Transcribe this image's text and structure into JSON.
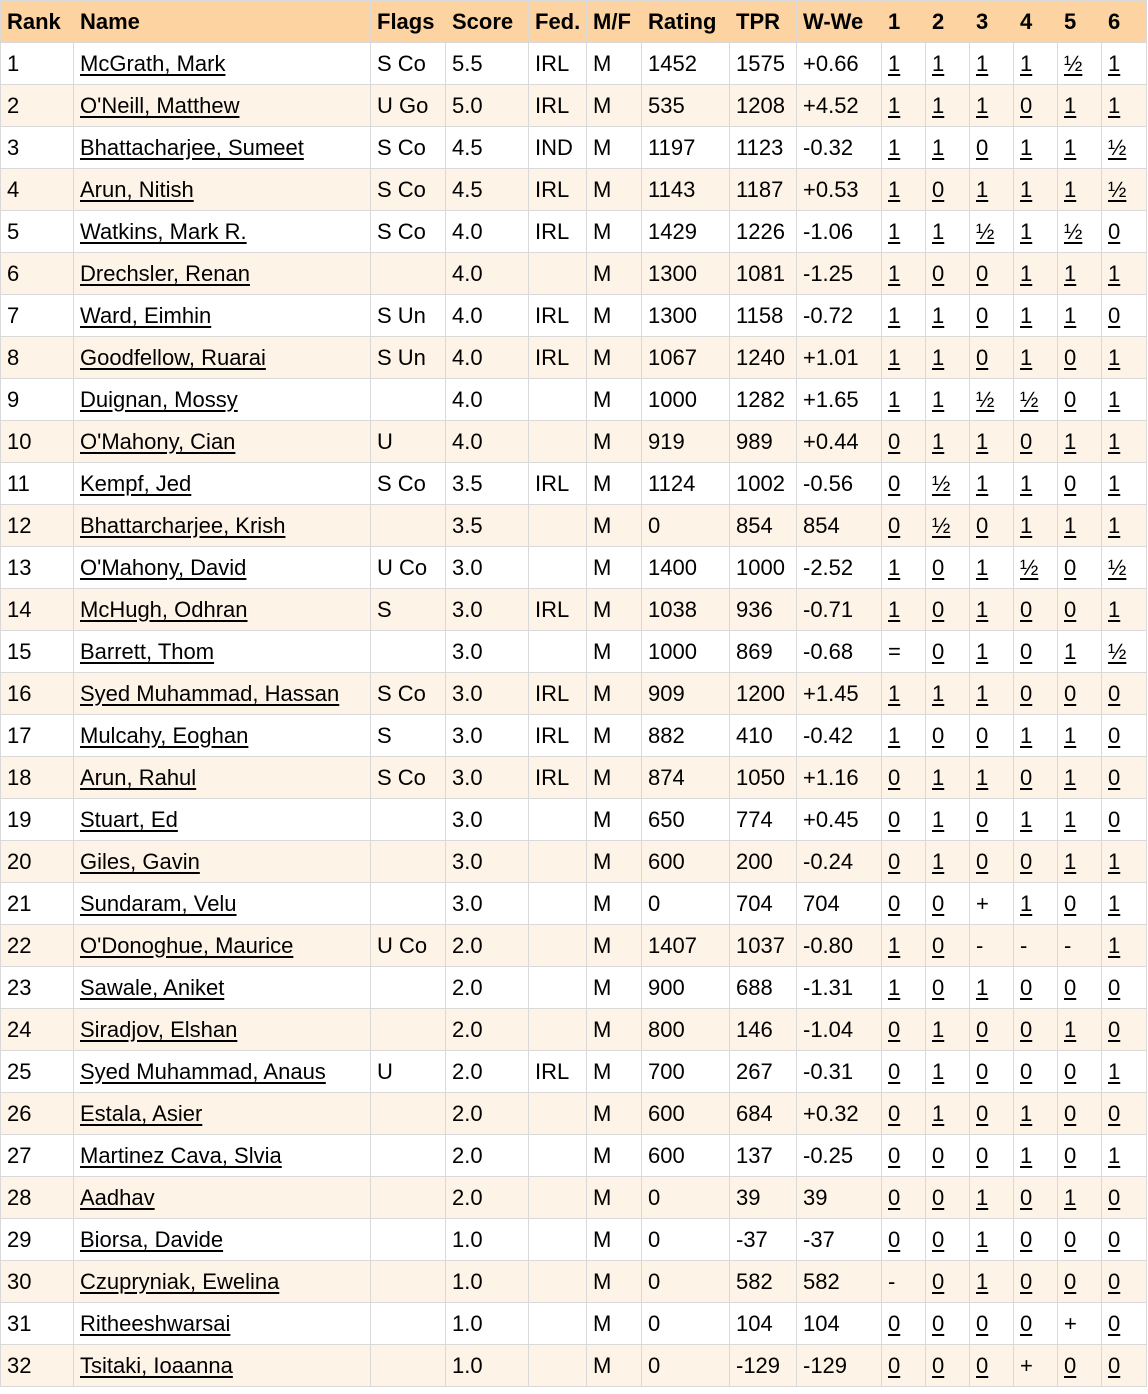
{
  "columns": [
    "Rank",
    "Name",
    "Flags",
    "Score",
    "Fed.",
    "M/F",
    "Rating",
    "TPR",
    "W-We",
    "1",
    "2",
    "3",
    "4",
    "5",
    "6"
  ],
  "rows": [
    {
      "rank": "1",
      "name": "McGrath, Mark",
      "flags": "S Co",
      "score": "5.5",
      "fed": "IRL",
      "mf": "M",
      "rating": "1452",
      "tpr": "1575",
      "wwe": "+0.66",
      "rounds": [
        "1",
        "1",
        "1",
        "1",
        "½",
        "1"
      ]
    },
    {
      "rank": "2",
      "name": "O'Neill, Matthew",
      "flags": "U Go",
      "score": "5.0",
      "fed": "IRL",
      "mf": "M",
      "rating": "535",
      "tpr": "1208",
      "wwe": "+4.52",
      "rounds": [
        "1",
        "1",
        "1",
        "0",
        "1",
        "1"
      ]
    },
    {
      "rank": "3",
      "name": "Bhattacharjee, Sumeet",
      "flags": "S Co",
      "score": "4.5",
      "fed": "IND",
      "mf": "M",
      "rating": "1197",
      "tpr": "1123",
      "wwe": "-0.32",
      "rounds": [
        "1",
        "1",
        "0",
        "1",
        "1",
        "½"
      ]
    },
    {
      "rank": "4",
      "name": "Arun, Nitish",
      "flags": "S Co",
      "score": "4.5",
      "fed": "IRL",
      "mf": "M",
      "rating": "1143",
      "tpr": "1187",
      "wwe": "+0.53",
      "rounds": [
        "1",
        "0",
        "1",
        "1",
        "1",
        "½"
      ]
    },
    {
      "rank": "5",
      "name": "Watkins, Mark R.",
      "flags": "S Co",
      "score": "4.0",
      "fed": "IRL",
      "mf": "M",
      "rating": "1429",
      "tpr": "1226",
      "wwe": "-1.06",
      "rounds": [
        "1",
        "1",
        "½",
        "1",
        "½",
        "0"
      ]
    },
    {
      "rank": "6",
      "name": "Drechsler, Renan",
      "flags": "",
      "score": "4.0",
      "fed": "",
      "mf": "M",
      "rating": "1300",
      "tpr": "1081",
      "wwe": "-1.25",
      "rounds": [
        "1",
        "0",
        "0",
        "1",
        "1",
        "1"
      ]
    },
    {
      "rank": "7",
      "name": "Ward, Eimhin",
      "flags": "S Un",
      "score": "4.0",
      "fed": "IRL",
      "mf": "M",
      "rating": "1300",
      "tpr": "1158",
      "wwe": "-0.72",
      "rounds": [
        "1",
        "1",
        "0",
        "1",
        "1",
        "0"
      ]
    },
    {
      "rank": "8",
      "name": "Goodfellow, Ruarai",
      "flags": "S Un",
      "score": "4.0",
      "fed": "IRL",
      "mf": "M",
      "rating": "1067",
      "tpr": "1240",
      "wwe": "+1.01",
      "rounds": [
        "1",
        "1",
        "0",
        "1",
        "0",
        "1"
      ]
    },
    {
      "rank": "9",
      "name": "Duignan, Mossy",
      "flags": "",
      "score": "4.0",
      "fed": "",
      "mf": "M",
      "rating": "1000",
      "tpr": "1282",
      "wwe": "+1.65",
      "rounds": [
        "1",
        "1",
        "½",
        "½",
        "0",
        "1"
      ]
    },
    {
      "rank": "10",
      "name": "O'Mahony, Cian",
      "flags": "U",
      "score": "4.0",
      "fed": "",
      "mf": "M",
      "rating": "919",
      "tpr": "989",
      "wwe": "+0.44",
      "rounds": [
        "0",
        "1",
        "1",
        "0",
        "1",
        "1"
      ]
    },
    {
      "rank": "11",
      "name": "Kempf, Jed",
      "flags": "S Co",
      "score": "3.5",
      "fed": "IRL",
      "mf": "M",
      "rating": "1124",
      "tpr": "1002",
      "wwe": "-0.56",
      "rounds": [
        "0",
        "½",
        "1",
        "1",
        "0",
        "1"
      ]
    },
    {
      "rank": "12",
      "name": "Bhattarcharjee, Krish",
      "flags": "",
      "score": "3.5",
      "fed": "",
      "mf": "M",
      "rating": "0",
      "tpr": "854",
      "wwe": "854",
      "rounds": [
        "0",
        "½",
        "0",
        "1",
        "1",
        "1"
      ]
    },
    {
      "rank": "13",
      "name": "O'Mahony, David",
      "flags": "U Co",
      "score": "3.0",
      "fed": "",
      "mf": "M",
      "rating": "1400",
      "tpr": "1000",
      "wwe": "-2.52",
      "rounds": [
        "1",
        "0",
        "1",
        "½",
        "0",
        "½"
      ]
    },
    {
      "rank": "14",
      "name": "McHugh, Odhran",
      "flags": "S",
      "score": "3.0",
      "fed": "IRL",
      "mf": "M",
      "rating": "1038",
      "tpr": "936",
      "wwe": "-0.71",
      "rounds": [
        "1",
        "0",
        "1",
        "0",
        "0",
        "1"
      ]
    },
    {
      "rank": "15",
      "name": "Barrett, Thom",
      "flags": "",
      "score": "3.0",
      "fed": "",
      "mf": "M",
      "rating": "1000",
      "tpr": "869",
      "wwe": "-0.68",
      "rounds": [
        "=",
        "0",
        "1",
        "0",
        "1",
        "½"
      ]
    },
    {
      "rank": "16",
      "name": "Syed Muhammad, Hassan",
      "flags": "S Co",
      "score": "3.0",
      "fed": "IRL",
      "mf": "M",
      "rating": "909",
      "tpr": "1200",
      "wwe": "+1.45",
      "rounds": [
        "1",
        "1",
        "1",
        "0",
        "0",
        "0"
      ]
    },
    {
      "rank": "17",
      "name": "Mulcahy, Eoghan",
      "flags": "S",
      "score": "3.0",
      "fed": "IRL",
      "mf": "M",
      "rating": "882",
      "tpr": "410",
      "wwe": "-0.42",
      "rounds": [
        "1",
        "0",
        "0",
        "1",
        "1",
        "0"
      ]
    },
    {
      "rank": "18",
      "name": "Arun, Rahul",
      "flags": "S Co",
      "score": "3.0",
      "fed": "IRL",
      "mf": "M",
      "rating": "874",
      "tpr": "1050",
      "wwe": "+1.16",
      "rounds": [
        "0",
        "1",
        "1",
        "0",
        "1",
        "0"
      ]
    },
    {
      "rank": "19",
      "name": "Stuart, Ed",
      "flags": "",
      "score": "3.0",
      "fed": "",
      "mf": "M",
      "rating": "650",
      "tpr": "774",
      "wwe": "+0.45",
      "rounds": [
        "0",
        "1",
        "0",
        "1",
        "1",
        "0"
      ]
    },
    {
      "rank": "20",
      "name": "Giles, Gavin",
      "flags": "",
      "score": "3.0",
      "fed": "",
      "mf": "M",
      "rating": "600",
      "tpr": "200",
      "wwe": "-0.24",
      "rounds": [
        "0",
        "1",
        "0",
        "0",
        "1",
        "1"
      ]
    },
    {
      "rank": "21",
      "name": "Sundaram, Velu",
      "flags": "",
      "score": "3.0",
      "fed": "",
      "mf": "M",
      "rating": "0",
      "tpr": "704",
      "wwe": "704",
      "rounds": [
        "0",
        "0",
        "+",
        "1",
        "0",
        "1"
      ]
    },
    {
      "rank": "22",
      "name": "O'Donoghue, Maurice",
      "flags": "U Co",
      "score": "2.0",
      "fed": "",
      "mf": "M",
      "rating": "1407",
      "tpr": "1037",
      "wwe": "-0.80",
      "rounds": [
        "1",
        "0",
        "-",
        "-",
        "-",
        "1"
      ]
    },
    {
      "rank": "23",
      "name": "Sawale, Aniket",
      "flags": "",
      "score": "2.0",
      "fed": "",
      "mf": "M",
      "rating": "900",
      "tpr": "688",
      "wwe": "-1.31",
      "rounds": [
        "1",
        "0",
        "1",
        "0",
        "0",
        "0"
      ]
    },
    {
      "rank": "24",
      "name": "Siradjov, Elshan",
      "flags": "",
      "score": "2.0",
      "fed": "",
      "mf": "M",
      "rating": "800",
      "tpr": "146",
      "wwe": "-1.04",
      "rounds": [
        "0",
        "1",
        "0",
        "0",
        "1",
        "0"
      ]
    },
    {
      "rank": "25",
      "name": "Syed Muhammad, Anaus",
      "flags": "U",
      "score": "2.0",
      "fed": "IRL",
      "mf": "M",
      "rating": "700",
      "tpr": "267",
      "wwe": "-0.31",
      "rounds": [
        "0",
        "1",
        "0",
        "0",
        "0",
        "1"
      ]
    },
    {
      "rank": "26",
      "name": "Estala, Asier",
      "flags": "",
      "score": "2.0",
      "fed": "",
      "mf": "M",
      "rating": "600",
      "tpr": "684",
      "wwe": "+0.32",
      "rounds": [
        "0",
        "1",
        "0",
        "1",
        "0",
        "0"
      ]
    },
    {
      "rank": "27",
      "name": "Martinez Cava, Slvia",
      "flags": "",
      "score": "2.0",
      "fed": "",
      "mf": "M",
      "rating": "600",
      "tpr": "137",
      "wwe": "-0.25",
      "rounds": [
        "0",
        "0",
        "0",
        "1",
        "0",
        "1"
      ]
    },
    {
      "rank": "28",
      "name": "Aadhav",
      "flags": "",
      "score": "2.0",
      "fed": "",
      "mf": "M",
      "rating": "0",
      "tpr": "39",
      "wwe": "39",
      "rounds": [
        "0",
        "0",
        "1",
        "0",
        "1",
        "0"
      ]
    },
    {
      "rank": "29",
      "name": "Biorsa, Davide",
      "flags": "",
      "score": "1.0",
      "fed": "",
      "mf": "M",
      "rating": "0",
      "tpr": "-37",
      "wwe": "-37",
      "rounds": [
        "0",
        "0",
        "1",
        "0",
        "0",
        "0"
      ]
    },
    {
      "rank": "30",
      "name": "Czupryniak, Ewelina",
      "flags": "",
      "score": "1.0",
      "fed": "",
      "mf": "M",
      "rating": "0",
      "tpr": "582",
      "wwe": "582",
      "rounds": [
        "-",
        "0",
        "1",
        "0",
        "0",
        "0"
      ]
    },
    {
      "rank": "31",
      "name": "Ritheeshwarsai",
      "flags": "",
      "score": "1.0",
      "fed": "",
      "mf": "M",
      "rating": "0",
      "tpr": "104",
      "wwe": "104",
      "rounds": [
        "0",
        "0",
        "0",
        "0",
        "+",
        "0"
      ]
    },
    {
      "rank": "32",
      "name": "Tsitaki, Ioaanna",
      "flags": "",
      "score": "1.0",
      "fed": "",
      "mf": "M",
      "rating": "0",
      "tpr": "-129",
      "wwe": "-129",
      "rounds": [
        "0",
        "0",
        "0",
        "+",
        "0",
        "0"
      ]
    }
  ]
}
